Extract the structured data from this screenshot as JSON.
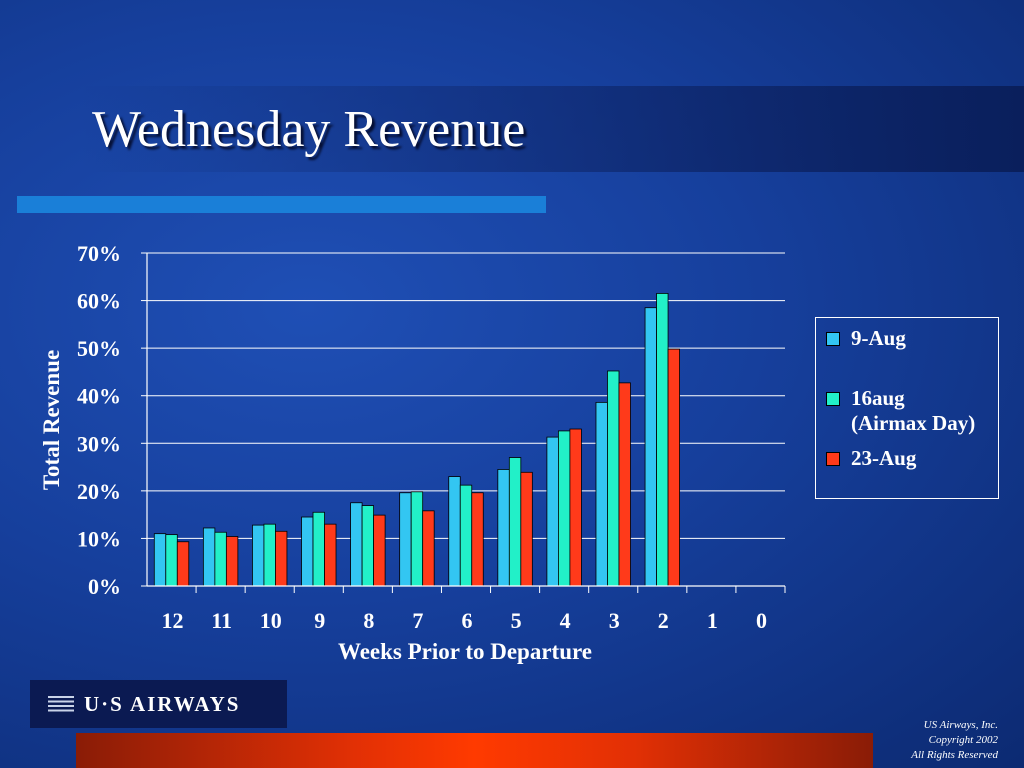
{
  "slide": {
    "title": "Wednesday Revenue",
    "logo_text": "U·S AIRWAYS",
    "copyright_lines": [
      "US Airways, Inc.",
      "Copyright 2002",
      "All Rights Reserved"
    ]
  },
  "colors": {
    "accent_bar": "#1a7fd8",
    "bottom_bar": "#ff3a00",
    "series": [
      "#33c6f2",
      "#22f0c8",
      "#ff3a1a"
    ]
  },
  "chart_data": {
    "type": "bar",
    "title": "",
    "xlabel": "Weeks Prior to Departure",
    "ylabel": "Total Revenue",
    "ylim": [
      0,
      70
    ],
    "yticks": [
      "0%",
      "10%",
      "20%",
      "30%",
      "40%",
      "50%",
      "60%",
      "70%"
    ],
    "grid": true,
    "legend_position": "right",
    "categories": [
      "12",
      "11",
      "10",
      "9",
      "8",
      "7",
      "6",
      "5",
      "4",
      "3",
      "2",
      "1",
      "0"
    ],
    "series": [
      {
        "name": "9-Aug",
        "values": [
          11,
          12.2,
          12.8,
          14.5,
          17.5,
          19.6,
          23,
          24.5,
          31.3,
          38.6,
          58.5,
          null,
          null
        ]
      },
      {
        "name": "16aug\n(Airmax Day)",
        "values": [
          10.8,
          11.3,
          13,
          15.5,
          16.9,
          19.8,
          21.2,
          27,
          32.6,
          45.2,
          61.5,
          null,
          null
        ]
      },
      {
        "name": "23-Aug",
        "values": [
          9.3,
          10.4,
          11.5,
          13,
          14.9,
          15.8,
          19.6,
          23.9,
          33,
          42.7,
          49.8,
          null,
          null
        ]
      }
    ]
  }
}
